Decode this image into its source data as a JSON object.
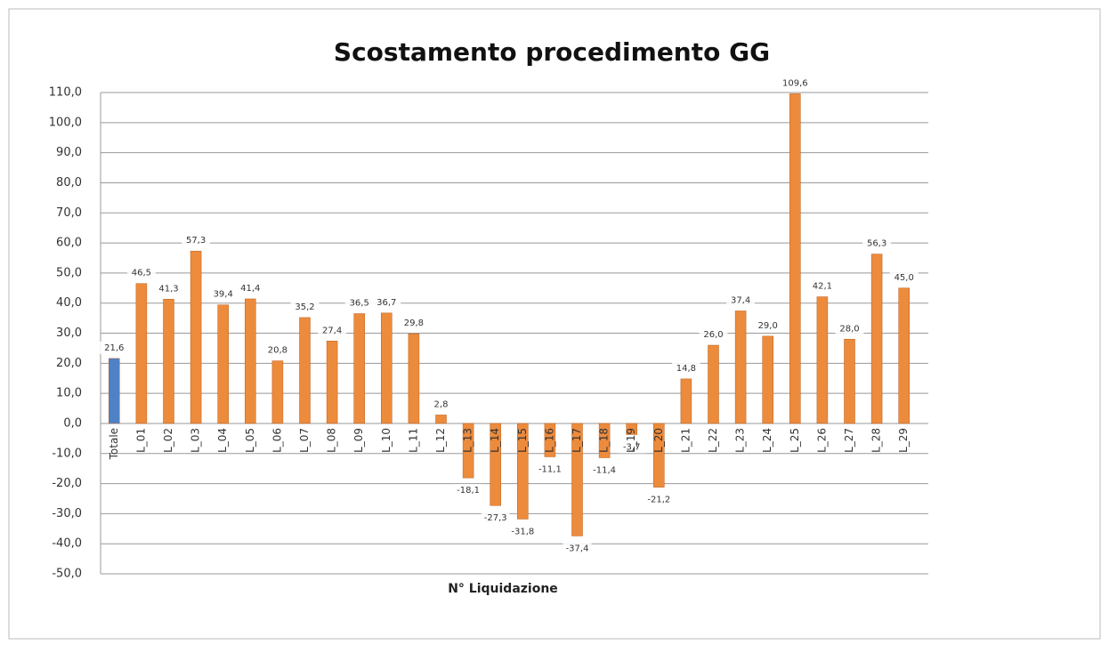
{
  "chart_data": {
    "type": "bar",
    "title": "Scostamento procedimento GG",
    "x_label": "N° Liquidazione",
    "categories": [
      "Totale",
      "L_01",
      "L_02",
      "L_03",
      "L_04",
      "L_05",
      "L_06",
      "L_07",
      "L_08",
      "L_09",
      "L_10",
      "L_11",
      "L_12",
      "L_13",
      "L_14",
      "L_15",
      "L_16",
      "L_17",
      "L_18",
      "L_19",
      "L_20",
      "L_21",
      "L_22",
      "L_23",
      "L_24",
      "L_25",
      "L_26",
      "L_27",
      "L_28",
      "L_29"
    ],
    "values": [
      21.6,
      46.5,
      41.3,
      57.3,
      39.4,
      41.4,
      20.8,
      35.2,
      27.4,
      36.5,
      36.7,
      29.8,
      2.8,
      -18.1,
      -27.3,
      -31.8,
      -11.1,
      -37.4,
      -11.4,
      -3.7,
      -21.2,
      14.8,
      26.0,
      37.4,
      29.0,
      109.6,
      42.1,
      28.0,
      56.3,
      45.0
    ],
    "value_labels": [
      "21,6",
      "46,5",
      "41,3",
      "57,3",
      "39,4",
      "41,4",
      "20,8",
      "35,2",
      "27,4",
      "36,5",
      "36,7",
      "29,8",
      "2,8",
      "-18,1",
      "-27,3",
      "-31,8",
      "-11,1",
      "-37,4",
      "-11,4",
      "-3,7",
      "-21,2",
      "14,8",
      "26,0",
      "37,4",
      "29,0",
      "109,6",
      "42,1",
      "28,0",
      "56,3",
      "45,0"
    ],
    "colors": [
      "#4f81c7",
      "#ed8b3c",
      "#ed8b3c",
      "#ed8b3c",
      "#ed8b3c",
      "#ed8b3c",
      "#ed8b3c",
      "#ed8b3c",
      "#ed8b3c",
      "#ed8b3c",
      "#ed8b3c",
      "#ed8b3c",
      "#ed8b3c",
      "#ed8b3c",
      "#ed8b3c",
      "#ed8b3c",
      "#ed8b3c",
      "#ed8b3c",
      "#ed8b3c",
      "#ed8b3c",
      "#ed8b3c",
      "#ed8b3c",
      "#ed8b3c",
      "#ed8b3c",
      "#ed8b3c",
      "#ed8b3c",
      "#ed8b3c",
      "#ed8b3c",
      "#ed8b3c",
      "#ed8b3c"
    ],
    "ylim": [
      -50,
      110
    ],
    "yticks": [
      {
        "value": -50,
        "label": "-50,0"
      },
      {
        "value": -40,
        "label": "-40,0"
      },
      {
        "value": -30,
        "label": "-30,0"
      },
      {
        "value": -20,
        "label": "-20,0"
      },
      {
        "value": -10,
        "label": "-10,0"
      },
      {
        "value": 0,
        "label": "0,0"
      },
      {
        "value": 10,
        "label": "10,0"
      },
      {
        "value": 20,
        "label": "20,0"
      },
      {
        "value": 30,
        "label": "30,0"
      },
      {
        "value": 40,
        "label": "40,0"
      },
      {
        "value": 50,
        "label": "50,0"
      },
      {
        "value": 60,
        "label": "60,0"
      },
      {
        "value": 70,
        "label": "70,0"
      },
      {
        "value": 80,
        "label": "80,0"
      },
      {
        "value": 90,
        "label": "90,0"
      },
      {
        "value": 100,
        "label": "100,0"
      },
      {
        "value": 110,
        "label": "110,0"
      }
    ],
    "grid": true
  }
}
